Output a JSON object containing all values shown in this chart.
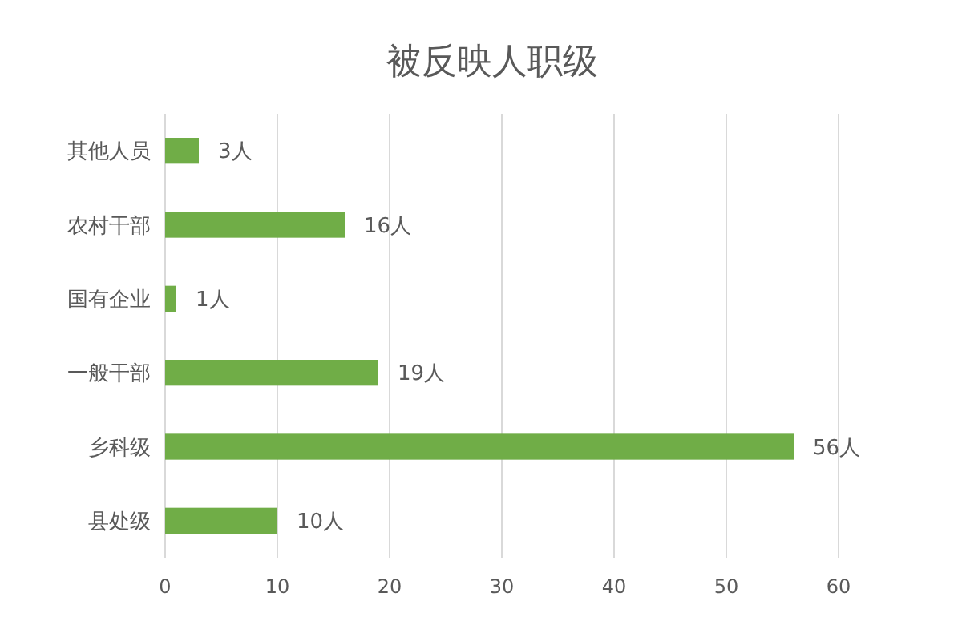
{
  "chart_data": {
    "type": "bar",
    "orientation": "horizontal",
    "title": "被反映人职级",
    "categories": [
      "其他人员",
      "农村干部",
      "国有企业",
      "一般干部",
      "乡科级",
      "县处级"
    ],
    "values": [
      3,
      16,
      1,
      19,
      56,
      10
    ],
    "value_labels": [
      "3人",
      "16人",
      "1人",
      "19人",
      "56人",
      "10人"
    ],
    "color": "#70ad47",
    "xlim": [
      0,
      60
    ],
    "xticks": [
      0,
      10,
      20,
      30,
      40,
      50,
      60
    ],
    "grid": "x"
  }
}
